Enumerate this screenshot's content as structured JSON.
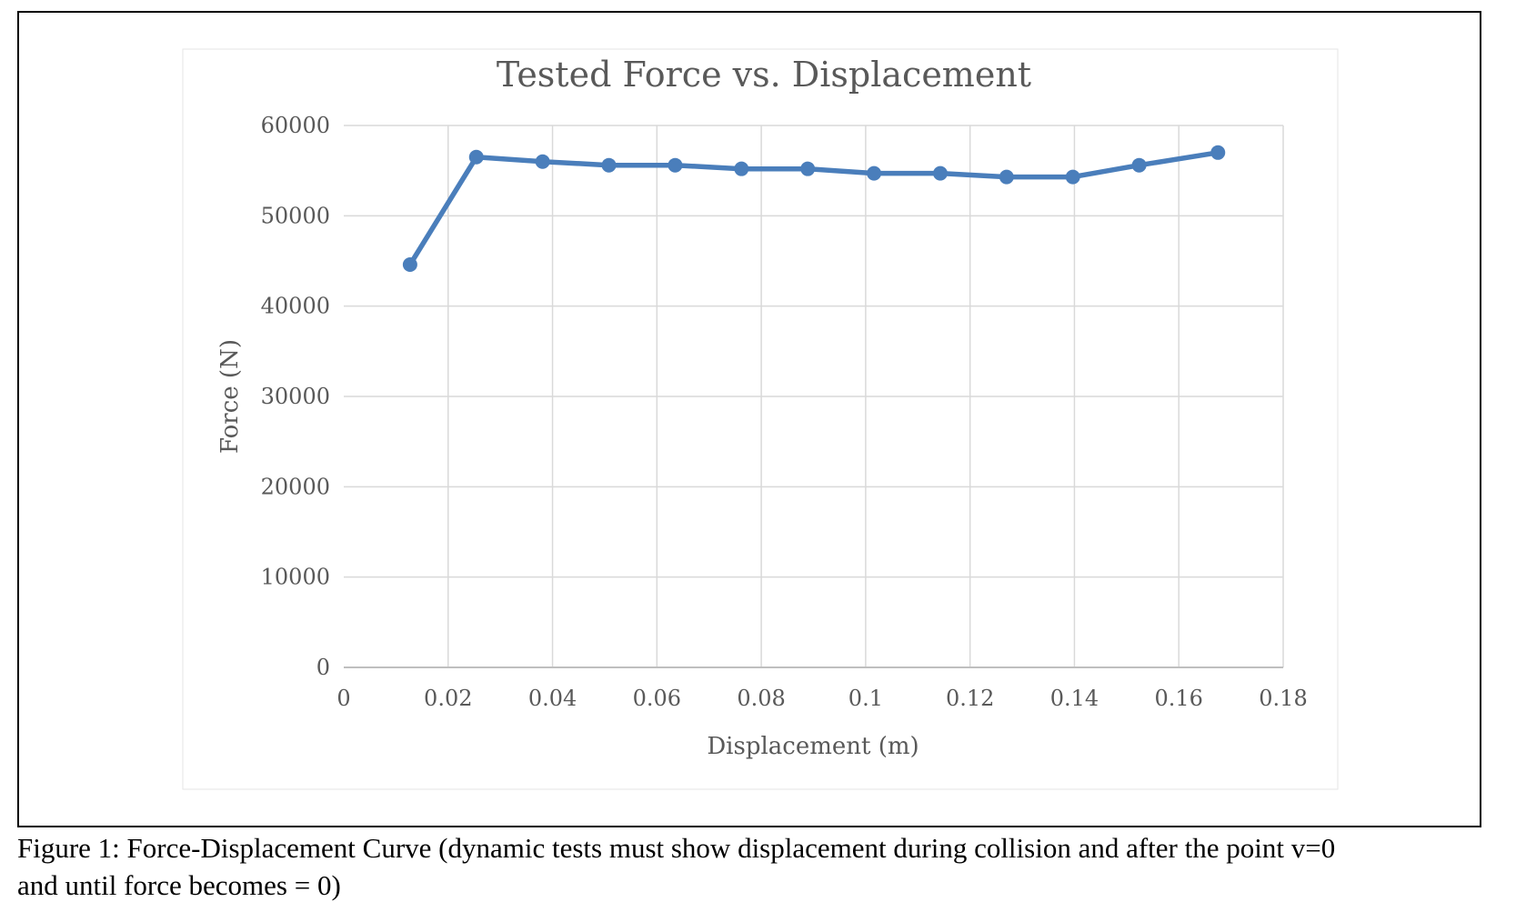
{
  "chart_data": {
    "type": "line",
    "title": "Tested Force vs. Displacement",
    "xlabel": "Displacement (m)",
    "ylabel": "Force (N)",
    "xlim": [
      0,
      0.18
    ],
    "ylim": [
      0,
      60000
    ],
    "x_ticks": [
      "0",
      "0.02",
      "0.04",
      "0.06",
      "0.08",
      "0.1",
      "0.12",
      "0.14",
      "0.16",
      "0.18"
    ],
    "y_ticks": [
      "0",
      "10000",
      "20000",
      "30000",
      "40000",
      "50000",
      "60000"
    ],
    "grid": true,
    "legend": "none",
    "series": [
      {
        "color": "#4a7ebb",
        "x": [
          0.0127,
          0.0254,
          0.0381,
          0.0508,
          0.0635,
          0.0762,
          0.0889,
          0.1016,
          0.1143,
          0.127,
          0.1397,
          0.1524,
          0.1675
        ],
        "y": [
          44600,
          56500,
          56000,
          55600,
          55600,
          55200,
          55200,
          54700,
          54700,
          54300,
          54300,
          55600,
          57000
        ]
      }
    ]
  },
  "caption": {
    "line1": "Figure 1: Force-Displacement Curve (dynamic tests must show displacement during collision and after the point v=0",
    "line2": "and until force becomes = 0)"
  }
}
